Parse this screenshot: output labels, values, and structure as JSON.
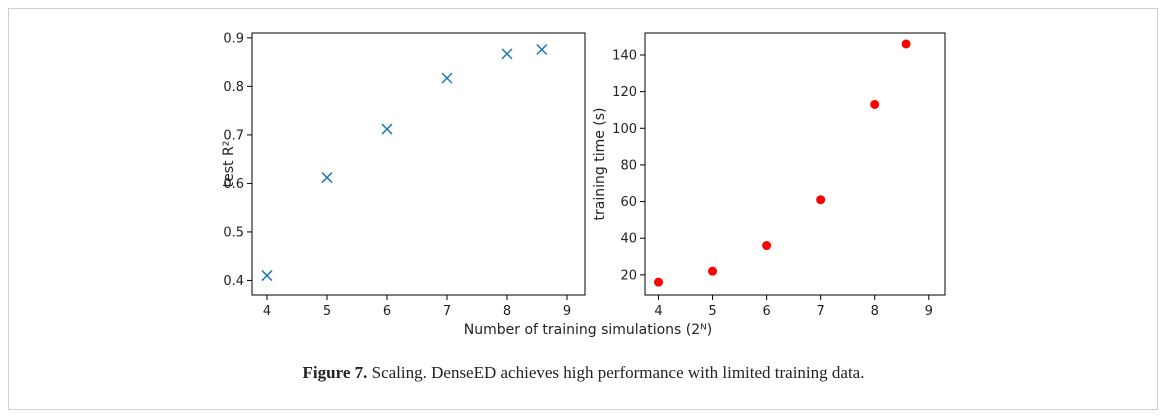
{
  "chart_data": [
    {
      "type": "scatter",
      "marker": "x",
      "color": "#1f77b4",
      "ylabel": "test R²",
      "xlabel": "",
      "x": [
        4,
        5,
        6,
        7,
        8,
        8.58
      ],
      "y": [
        0.41,
        0.612,
        0.712,
        0.817,
        0.867,
        0.876
      ],
      "xlim": [
        3.75,
        9.3
      ],
      "ylim": [
        0.37,
        0.91
      ],
      "xticks": [
        "4",
        "5",
        "6",
        "7",
        "8",
        "9"
      ],
      "yticks": [
        "0.4",
        "0.5",
        "0.6",
        "0.7",
        "0.8",
        "0.9"
      ],
      "grid": false
    },
    {
      "type": "scatter",
      "marker": "o",
      "color": "#ff0000",
      "ylabel": "training time (s)",
      "xlabel": "",
      "x": [
        4,
        5,
        6,
        7,
        8,
        8.58
      ],
      "y": [
        16,
        22,
        36,
        61,
        113,
        146
      ],
      "xlim": [
        3.75,
        9.3
      ],
      "ylim": [
        9,
        152
      ],
      "xticks": [
        "4",
        "5",
        "6",
        "7",
        "8",
        "9"
      ],
      "yticks": [
        "20",
        "40",
        "60",
        "80",
        "100",
        "120",
        "140"
      ],
      "grid": false
    }
  ],
  "shared_xlabel": "Number of training simulations (2ᴺ)",
  "caption": {
    "label": "Figure 7.",
    "text": " Scaling. DenseED achieves high performance with limited training data."
  }
}
